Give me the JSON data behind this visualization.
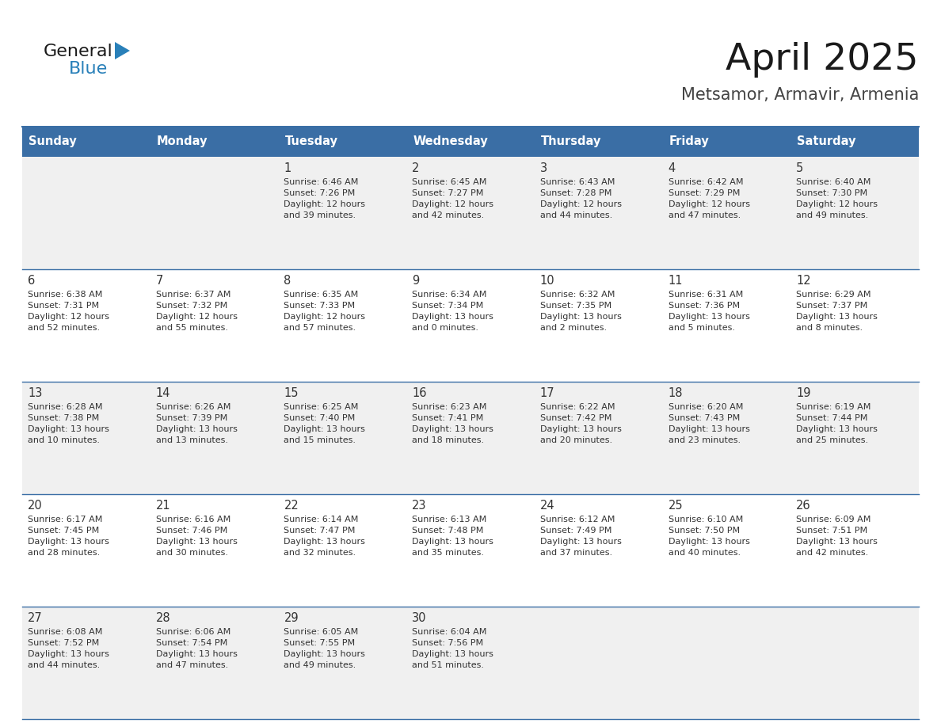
{
  "title": "April 2025",
  "subtitle": "Metsamor, Armavir, Armenia",
  "header_bg_color": "#3a6ea5",
  "header_text_color": "#ffffff",
  "odd_row_bg": "#f0f0f0",
  "even_row_bg": "#ffffff",
  "border_color": "#3a6ea5",
  "text_color": "#333333",
  "days_of_week": [
    "Sunday",
    "Monday",
    "Tuesday",
    "Wednesday",
    "Thursday",
    "Friday",
    "Saturday"
  ],
  "calendar_data": [
    [
      {
        "day": "",
        "sunrise": "",
        "sunset": "",
        "daylight": ""
      },
      {
        "day": "",
        "sunrise": "",
        "sunset": "",
        "daylight": ""
      },
      {
        "day": "1",
        "sunrise": "Sunrise: 6:46 AM",
        "sunset": "Sunset: 7:26 PM",
        "daylight": "Daylight: 12 hours\nand 39 minutes."
      },
      {
        "day": "2",
        "sunrise": "Sunrise: 6:45 AM",
        "sunset": "Sunset: 7:27 PM",
        "daylight": "Daylight: 12 hours\nand 42 minutes."
      },
      {
        "day": "3",
        "sunrise": "Sunrise: 6:43 AM",
        "sunset": "Sunset: 7:28 PM",
        "daylight": "Daylight: 12 hours\nand 44 minutes."
      },
      {
        "day": "4",
        "sunrise": "Sunrise: 6:42 AM",
        "sunset": "Sunset: 7:29 PM",
        "daylight": "Daylight: 12 hours\nand 47 minutes."
      },
      {
        "day": "5",
        "sunrise": "Sunrise: 6:40 AM",
        "sunset": "Sunset: 7:30 PM",
        "daylight": "Daylight: 12 hours\nand 49 minutes."
      }
    ],
    [
      {
        "day": "6",
        "sunrise": "Sunrise: 6:38 AM",
        "sunset": "Sunset: 7:31 PM",
        "daylight": "Daylight: 12 hours\nand 52 minutes."
      },
      {
        "day": "7",
        "sunrise": "Sunrise: 6:37 AM",
        "sunset": "Sunset: 7:32 PM",
        "daylight": "Daylight: 12 hours\nand 55 minutes."
      },
      {
        "day": "8",
        "sunrise": "Sunrise: 6:35 AM",
        "sunset": "Sunset: 7:33 PM",
        "daylight": "Daylight: 12 hours\nand 57 minutes."
      },
      {
        "day": "9",
        "sunrise": "Sunrise: 6:34 AM",
        "sunset": "Sunset: 7:34 PM",
        "daylight": "Daylight: 13 hours\nand 0 minutes."
      },
      {
        "day": "10",
        "sunrise": "Sunrise: 6:32 AM",
        "sunset": "Sunset: 7:35 PM",
        "daylight": "Daylight: 13 hours\nand 2 minutes."
      },
      {
        "day": "11",
        "sunrise": "Sunrise: 6:31 AM",
        "sunset": "Sunset: 7:36 PM",
        "daylight": "Daylight: 13 hours\nand 5 minutes."
      },
      {
        "day": "12",
        "sunrise": "Sunrise: 6:29 AM",
        "sunset": "Sunset: 7:37 PM",
        "daylight": "Daylight: 13 hours\nand 8 minutes."
      }
    ],
    [
      {
        "day": "13",
        "sunrise": "Sunrise: 6:28 AM",
        "sunset": "Sunset: 7:38 PM",
        "daylight": "Daylight: 13 hours\nand 10 minutes."
      },
      {
        "day": "14",
        "sunrise": "Sunrise: 6:26 AM",
        "sunset": "Sunset: 7:39 PM",
        "daylight": "Daylight: 13 hours\nand 13 minutes."
      },
      {
        "day": "15",
        "sunrise": "Sunrise: 6:25 AM",
        "sunset": "Sunset: 7:40 PM",
        "daylight": "Daylight: 13 hours\nand 15 minutes."
      },
      {
        "day": "16",
        "sunrise": "Sunrise: 6:23 AM",
        "sunset": "Sunset: 7:41 PM",
        "daylight": "Daylight: 13 hours\nand 18 minutes."
      },
      {
        "day": "17",
        "sunrise": "Sunrise: 6:22 AM",
        "sunset": "Sunset: 7:42 PM",
        "daylight": "Daylight: 13 hours\nand 20 minutes."
      },
      {
        "day": "18",
        "sunrise": "Sunrise: 6:20 AM",
        "sunset": "Sunset: 7:43 PM",
        "daylight": "Daylight: 13 hours\nand 23 minutes."
      },
      {
        "day": "19",
        "sunrise": "Sunrise: 6:19 AM",
        "sunset": "Sunset: 7:44 PM",
        "daylight": "Daylight: 13 hours\nand 25 minutes."
      }
    ],
    [
      {
        "day": "20",
        "sunrise": "Sunrise: 6:17 AM",
        "sunset": "Sunset: 7:45 PM",
        "daylight": "Daylight: 13 hours\nand 28 minutes."
      },
      {
        "day": "21",
        "sunrise": "Sunrise: 6:16 AM",
        "sunset": "Sunset: 7:46 PM",
        "daylight": "Daylight: 13 hours\nand 30 minutes."
      },
      {
        "day": "22",
        "sunrise": "Sunrise: 6:14 AM",
        "sunset": "Sunset: 7:47 PM",
        "daylight": "Daylight: 13 hours\nand 32 minutes."
      },
      {
        "day": "23",
        "sunrise": "Sunrise: 6:13 AM",
        "sunset": "Sunset: 7:48 PM",
        "daylight": "Daylight: 13 hours\nand 35 minutes."
      },
      {
        "day": "24",
        "sunrise": "Sunrise: 6:12 AM",
        "sunset": "Sunset: 7:49 PM",
        "daylight": "Daylight: 13 hours\nand 37 minutes."
      },
      {
        "day": "25",
        "sunrise": "Sunrise: 6:10 AM",
        "sunset": "Sunset: 7:50 PM",
        "daylight": "Daylight: 13 hours\nand 40 minutes."
      },
      {
        "day": "26",
        "sunrise": "Sunrise: 6:09 AM",
        "sunset": "Sunset: 7:51 PM",
        "daylight": "Daylight: 13 hours\nand 42 minutes."
      }
    ],
    [
      {
        "day": "27",
        "sunrise": "Sunrise: 6:08 AM",
        "sunset": "Sunset: 7:52 PM",
        "daylight": "Daylight: 13 hours\nand 44 minutes."
      },
      {
        "day": "28",
        "sunrise": "Sunrise: 6:06 AM",
        "sunset": "Sunset: 7:54 PM",
        "daylight": "Daylight: 13 hours\nand 47 minutes."
      },
      {
        "day": "29",
        "sunrise": "Sunrise: 6:05 AM",
        "sunset": "Sunset: 7:55 PM",
        "daylight": "Daylight: 13 hours\nand 49 minutes."
      },
      {
        "day": "30",
        "sunrise": "Sunrise: 6:04 AM",
        "sunset": "Sunset: 7:56 PM",
        "daylight": "Daylight: 13 hours\nand 51 minutes."
      },
      {
        "day": "",
        "sunrise": "",
        "sunset": "",
        "daylight": ""
      },
      {
        "day": "",
        "sunrise": "",
        "sunset": "",
        "daylight": ""
      },
      {
        "day": "",
        "sunrise": "",
        "sunset": "",
        "daylight": ""
      }
    ]
  ],
  "logo_text_general": "General",
  "logo_text_blue": "Blue",
  "logo_color_general": "#1a1a1a",
  "logo_color_blue": "#2980b9",
  "logo_triangle_color": "#2980b9",
  "figwidth": 11.88,
  "figheight": 9.18,
  "dpi": 100
}
